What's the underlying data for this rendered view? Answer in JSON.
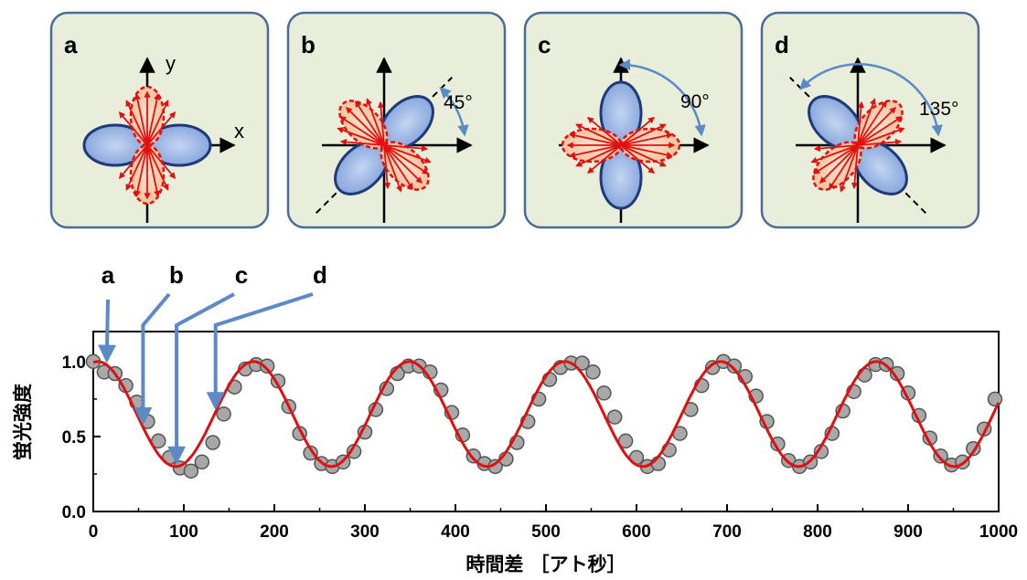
{
  "panels": [
    {
      "label": "a",
      "angle_deg": 0,
      "angle_label": ""
    },
    {
      "label": "b",
      "angle_deg": 45,
      "angle_label": "45°"
    },
    {
      "label": "c",
      "angle_deg": 90,
      "angle_label": "90°"
    },
    {
      "label": "d",
      "angle_deg": 135,
      "angle_label": "135°"
    }
  ],
  "panel_axis_labels": {
    "x": "x",
    "y": "y"
  },
  "colors": {
    "panel_bg": "#e9eedb",
    "panel_border": "#4a6d96",
    "blue_lobe": "#7d9fd8",
    "blue_lobe_stroke": "#1f3a78",
    "red_lobe": "#f6c9a6",
    "red_stroke": "#e01010",
    "fit_line": "#e01010",
    "marker_fill": "#a8a8a8",
    "marker_stroke": "#555555",
    "arrow": "#5b8ac6"
  },
  "markers": [
    {
      "label": "a",
      "x": 15
    },
    {
      "label": "b",
      "x": 55
    },
    {
      "label": "c",
      "x": 92
    },
    {
      "label": "d",
      "x": 135
    }
  ],
  "chart_data": {
    "type": "scatter",
    "title": "",
    "xlabel": "時間差 ［アト秒］",
    "ylabel": "蛍光強度",
    "xlim": [
      0,
      1000
    ],
    "ylim": [
      0,
      1.2
    ],
    "xticks": [
      0,
      100,
      200,
      300,
      400,
      500,
      600,
      700,
      800,
      900,
      1000
    ],
    "yticks": [
      0.0,
      0.5,
      1.0
    ],
    "xtick_labels": [
      "0",
      "100",
      "200",
      "300",
      "400",
      "500",
      "600",
      "700",
      "800",
      "900",
      "1000"
    ],
    "ytick_labels": [
      "0.0",
      "0.5",
      "1.0"
    ],
    "grid": false,
    "series": [
      {
        "kind": "points",
        "x": [
          0,
          12,
          24,
          36,
          48,
          60,
          72,
          84,
          96,
          108,
          120,
          132,
          144,
          156,
          168,
          180,
          192,
          204,
          216,
          228,
          240,
          252,
          264,
          276,
          288,
          300,
          312,
          324,
          336,
          348,
          360,
          372,
          384,
          396,
          408,
          420,
          432,
          444,
          456,
          468,
          480,
          492,
          504,
          516,
          528,
          540,
          552,
          564,
          576,
          588,
          600,
          612,
          624,
          636,
          648,
          660,
          672,
          684,
          696,
          708,
          720,
          732,
          744,
          756,
          768,
          780,
          792,
          804,
          816,
          828,
          840,
          852,
          864,
          876,
          888,
          900,
          912,
          924,
          936,
          948,
          960,
          972,
          984,
          996
        ],
        "y": [
          1.0,
          0.93,
          0.92,
          0.84,
          0.73,
          0.6,
          0.47,
          0.36,
          0.29,
          0.27,
          0.33,
          0.46,
          0.65,
          0.83,
          0.95,
          0.98,
          0.97,
          0.87,
          0.7,
          0.52,
          0.39,
          0.32,
          0.3,
          0.33,
          0.4,
          0.53,
          0.68,
          0.82,
          0.92,
          0.97,
          0.97,
          0.93,
          0.81,
          0.66,
          0.51,
          0.37,
          0.32,
          0.3,
          0.35,
          0.46,
          0.6,
          0.75,
          0.88,
          0.96,
          0.99,
          0.99,
          0.93,
          0.79,
          0.63,
          0.47,
          0.36,
          0.3,
          0.32,
          0.41,
          0.52,
          0.68,
          0.84,
          0.96,
          1.0,
          0.97,
          0.9,
          0.77,
          0.6,
          0.45,
          0.34,
          0.3,
          0.33,
          0.4,
          0.52,
          0.67,
          0.8,
          0.91,
          0.98,
          0.98,
          0.92,
          0.79,
          0.64,
          0.49,
          0.37,
          0.31,
          0.33,
          0.42,
          0.55,
          0.75
        ]
      },
      {
        "kind": "fit-line",
        "model": "y = 0.65 + 0.35*cos(2*pi*(x-5)/172)",
        "params": {
          "offset": 0.65,
          "amplitude": 0.35,
          "period": 172,
          "phase": 5
        }
      }
    ]
  }
}
